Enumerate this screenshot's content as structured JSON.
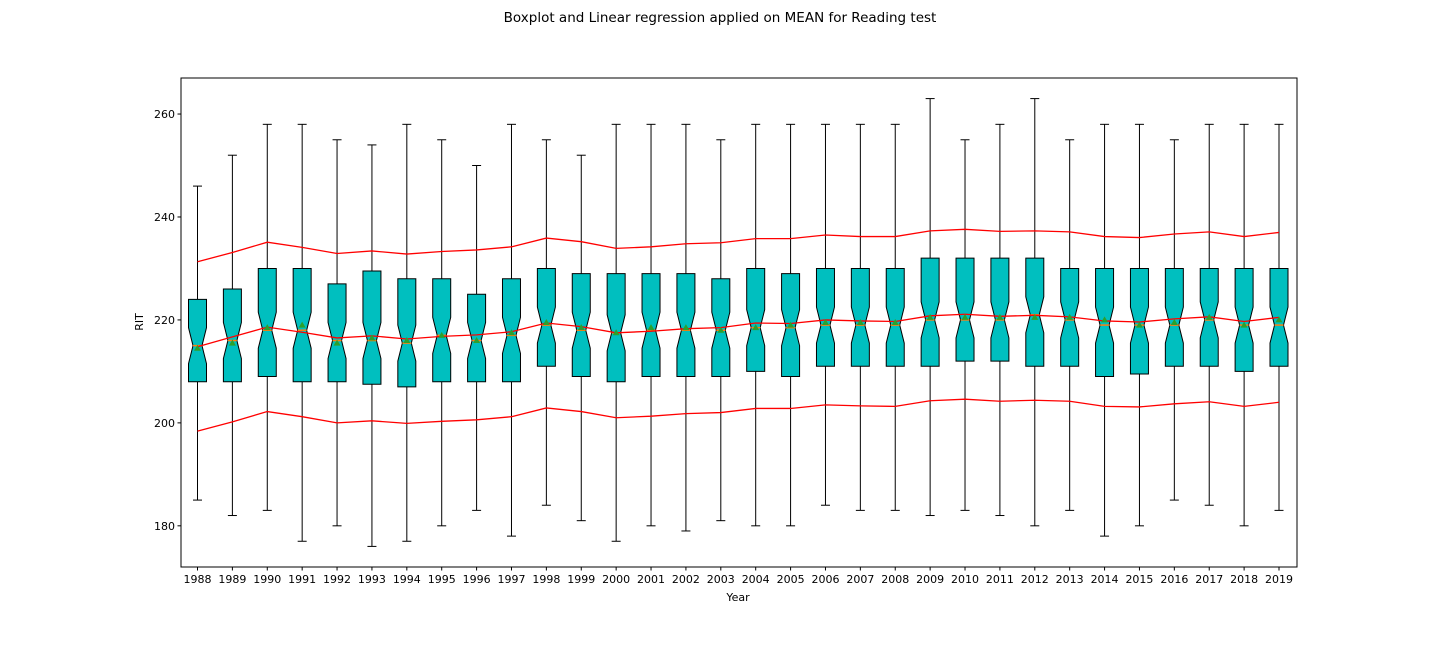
{
  "chart_data": {
    "type": "boxplot",
    "title": "Boxplot and Linear regression applied on MEAN for Reading test",
    "xlabel": "Year",
    "ylabel": "RIT",
    "ylim": [
      172,
      267
    ],
    "yticks": [
      180,
      200,
      220,
      240,
      260
    ],
    "categories": [
      "1988",
      "1989",
      "1990",
      "1991",
      "1992",
      "1993",
      "1994",
      "1995",
      "1996",
      "1997",
      "1998",
      "1999",
      "2000",
      "2001",
      "2002",
      "2003",
      "2004",
      "2005",
      "2006",
      "2007",
      "2008",
      "2009",
      "2010",
      "2011",
      "2012",
      "2013",
      "2014",
      "2015",
      "2016",
      "2017",
      "2018",
      "2019"
    ],
    "boxes": {
      "whisker_low": [
        185,
        182,
        183,
        177,
        180,
        176,
        177,
        180,
        183,
        178,
        184,
        181,
        177,
        180,
        179,
        181,
        180,
        180,
        184,
        183,
        183,
        182,
        183,
        182,
        180,
        183,
        178,
        180,
        185,
        184,
        180,
        183
      ],
      "q1": [
        208,
        208,
        209,
        208,
        208,
        207.5,
        207,
        208,
        208,
        208,
        211,
        209,
        208,
        209,
        209,
        209,
        210,
        209,
        211,
        211,
        211,
        211,
        212,
        212,
        211,
        211,
        209,
        209.5,
        211,
        211,
        210,
        211
      ],
      "median": [
        215,
        216,
        218,
        218,
        216,
        216,
        215.5,
        217,
        216,
        217,
        219,
        218,
        217.5,
        218,
        218,
        218,
        218.5,
        218.5,
        219,
        219,
        219,
        220,
        220,
        220,
        221,
        220,
        219,
        219,
        219,
        220,
        219,
        219
      ],
      "q3": [
        224,
        226,
        230,
        230,
        227,
        229.5,
        228,
        228,
        225,
        228,
        230,
        229,
        229,
        229,
        229,
        228,
        230,
        229,
        230,
        230,
        230,
        232,
        232,
        232,
        232,
        230,
        230,
        230,
        230,
        230,
        230,
        230
      ],
      "whisker_high": [
        246,
        252,
        258,
        258,
        255,
        254,
        258,
        255,
        250,
        258,
        255,
        252,
        258,
        258,
        258,
        255,
        258,
        258,
        258,
        258,
        258,
        263,
        255,
        258,
        263,
        255,
        258,
        258,
        255,
        258,
        258,
        258
      ],
      "mean": [
        214.5,
        215.5,
        218.5,
        219,
        215.5,
        216.5,
        216,
        217,
        216,
        217.5,
        219.5,
        218.5,
        217.5,
        218.5,
        218.5,
        218,
        218.5,
        219,
        219.5,
        219.5,
        219.5,
        220.5,
        220.5,
        220.5,
        220.5,
        220.5,
        220,
        219,
        219.5,
        220.5,
        219,
        220
      ]
    },
    "series": [
      {
        "values": [
          231.3,
          233.1,
          235.1,
          234.1,
          232.9,
          233.4,
          232.8,
          233.3,
          233.6,
          234.2,
          235.9,
          235.2,
          233.9,
          234.2,
          234.8,
          235.0,
          235.8,
          235.8,
          236.5,
          236.2,
          236.2,
          237.3,
          237.6,
          237.2,
          237.3,
          237.1,
          236.2,
          236.0,
          236.7,
          237.1,
          236.2,
          237.0
        ]
      },
      {
        "values": [
          214.8,
          216.7,
          218.6,
          217.6,
          216.5,
          216.9,
          216.3,
          216.8,
          217.1,
          217.7,
          219.4,
          218.7,
          217.5,
          217.8,
          218.3,
          218.5,
          219.4,
          219.3,
          220.0,
          219.8,
          219.7,
          220.8,
          221.1,
          220.7,
          220.9,
          220.6,
          219.8,
          219.6,
          220.2,
          220.6,
          219.7,
          220.5
        ]
      },
      {
        "values": [
          198.4,
          200.2,
          202.2,
          201.2,
          200.0,
          200.4,
          199.9,
          200.3,
          200.6,
          201.2,
          202.9,
          202.2,
          201.0,
          201.3,
          201.8,
          202.0,
          202.8,
          202.8,
          203.5,
          203.3,
          203.2,
          204.3,
          204.6,
          204.2,
          204.4,
          204.2,
          203.2,
          203.1,
          203.7,
          204.1,
          203.2,
          204.0
        ]
      }
    ],
    "colors": {
      "box_fill": "#00bfbf",
      "regression_line": "#ff0000",
      "mean_marker": "#2ca02c",
      "median_marker": "#ff7f0e"
    },
    "legend": "none",
    "grid": false
  }
}
